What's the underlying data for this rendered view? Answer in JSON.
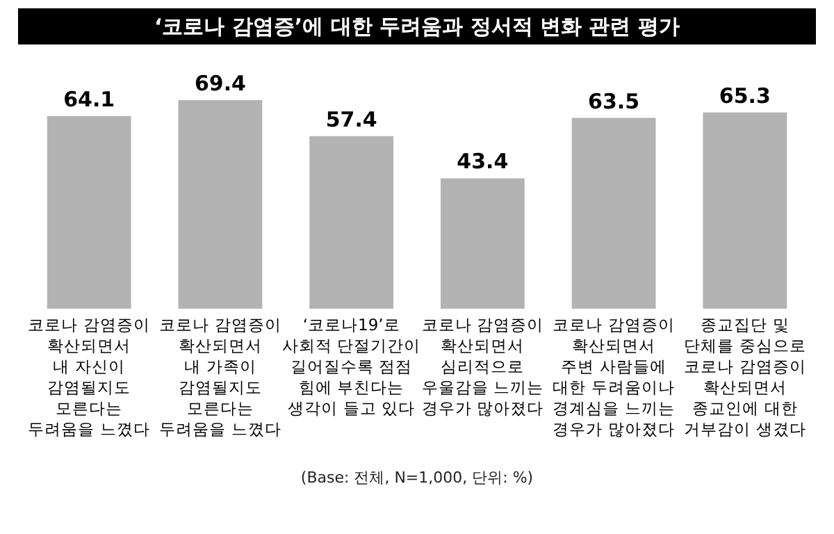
{
  "chart_data": {
    "type": "bar",
    "title": "‘코로나 감염증’에 대한 두려움과 정서적 변화 관련 평가",
    "categories": [
      "코로나 감염증이\n확산되면서\n내 자신이\n감염될지도\n모른다는\n두려움을 느꼈다",
      "코로나 감염증이\n확산되면서\n내 가족이\n감염될지도\n모른다는\n두려움을 느꼈다",
      "‘코로나19’로\n사회적 단절기간이\n길어질수록 점점\n힘에 부친다는\n생각이 들고 있다",
      "코로나 감염증이\n확산되면서\n심리적으로\n우울감을 느끼는\n경우가 많아졌다",
      "코로나 감염증이\n확산되면서\n주변 사람들에\n대한 두려움이나\n경계심을 느끼는\n경우가 많아졌다",
      "종교집단 및\n단체를 중심으로\n코로나 감염증이\n확산되면서\n종교인에 대한\n거부감이 생겼다"
    ],
    "values": [
      64.1,
      69.4,
      57.4,
      43.4,
      63.5,
      65.3
    ],
    "color": "#b3b3b3",
    "data_labels": true,
    "annotations": [
      "(Base: 전체, N=1,000, 단위: %)"
    ]
  }
}
